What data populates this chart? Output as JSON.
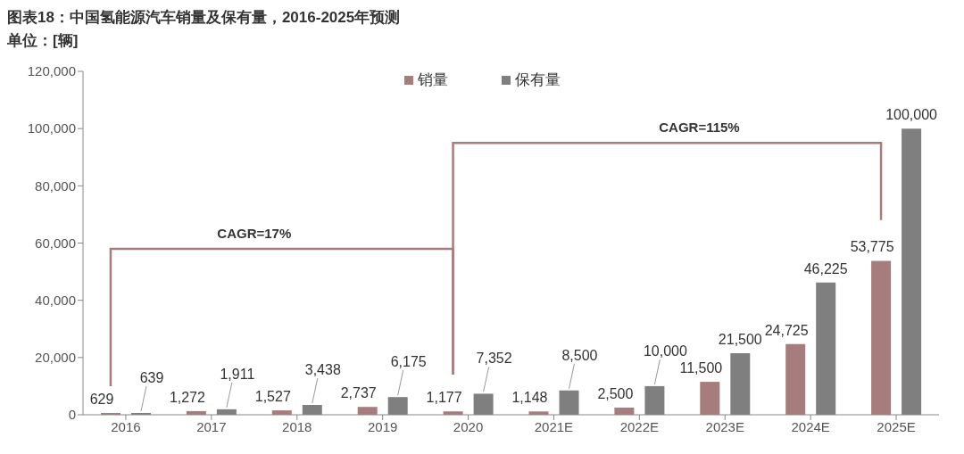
{
  "chart_data": {
    "type": "bar",
    "title": "图表18：中国氢能源汽车销量及保有量，2016-2025年预测",
    "subtitle": "单位：[辆]",
    "categories": [
      "2016",
      "2017",
      "2018",
      "2019",
      "2020",
      "2021E",
      "2022E",
      "2023E",
      "2024E",
      "2025E"
    ],
    "series": [
      {
        "name": "销量",
        "color": "#a67c7c",
        "values": [
          629,
          1272,
          1527,
          2737,
          1177,
          1148,
          2500,
          11500,
          24725,
          53775
        ],
        "value_labels": [
          "629",
          "1,272",
          "1,527",
          "2,737",
          "1,177",
          "1,148",
          "2,500",
          "11,500",
          "24,725",
          "53,775"
        ]
      },
      {
        "name": "保有量",
        "color": "#7f7f7f",
        "values": [
          639,
          1911,
          3438,
          6175,
          7352,
          8500,
          10000,
          21500,
          46225,
          100000
        ],
        "value_labels": [
          "639",
          "1,911",
          "3,438",
          "6,175",
          "7,352",
          "8,500",
          "10,000",
          "21,500",
          "46,225",
          "100,000"
        ]
      }
    ],
    "ylim": [
      0,
      120000
    ],
    "yticks": [
      {
        "value": 0,
        "label": "0"
      },
      {
        "value": 20000,
        "label": "20,000"
      },
      {
        "value": 40000,
        "label": "40,000"
      },
      {
        "value": 60000,
        "label": "60,000"
      },
      {
        "value": 80000,
        "label": "80,000"
      },
      {
        "value": 100000,
        "label": "100,000"
      },
      {
        "value": 120000,
        "label": "120,000"
      }
    ],
    "annotations": [
      "CAGR=17%",
      "CAGR=115%"
    ],
    "legend": "top",
    "grid": false
  }
}
